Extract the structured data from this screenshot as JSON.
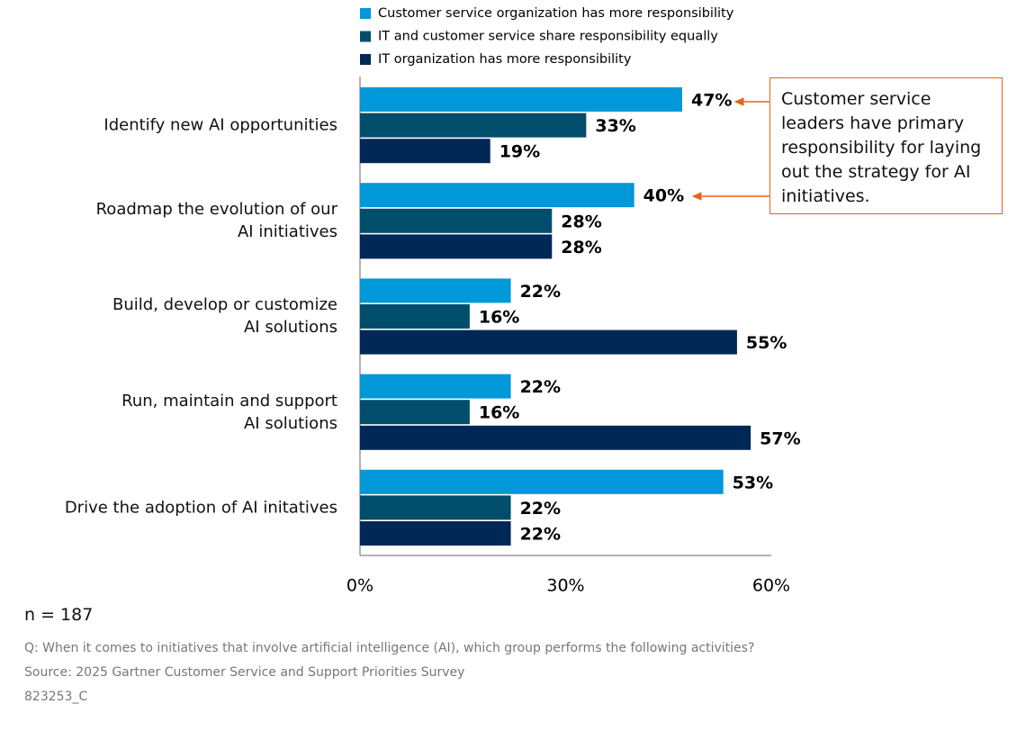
{
  "chart_data": {
    "type": "hbar",
    "categories": [
      "Identify new AI opportunities",
      "Roadmap the evolution of our\nAI initiatives",
      "Build, develop or customize\nAI solutions",
      "Run, maintain and support\nAI solutions",
      "Drive the adoption of AI initatives"
    ],
    "series": [
      {
        "name": "Customer service organization has more responsibility",
        "color": "#0098d8",
        "values": [
          47,
          40,
          22,
          22,
          53
        ],
        "value_labels": [
          "47%",
          "40%",
          "22%",
          "22%",
          "53%"
        ]
      },
      {
        "name": "IT and customer service share responsibility equally",
        "color": "#004e6c",
        "values": [
          33,
          28,
          16,
          16,
          22
        ],
        "value_labels": [
          "33%",
          "28%",
          "16%",
          "16%",
          "22%"
        ]
      },
      {
        "name": "IT organization has more responsibility",
        "color": "#002856",
        "values": [
          19,
          28,
          55,
          57,
          22
        ],
        "value_labels": [
          "19%",
          "28%",
          "55%",
          "57%",
          "22%"
        ]
      }
    ],
    "xlim": [
      0,
      60
    ],
    "xticks": [
      {
        "value": 0,
        "label": "0%"
      },
      {
        "value": 30,
        "label": "30%"
      },
      {
        "value": 60,
        "label": "60%"
      }
    ],
    "grid": false,
    "annotation": "Customer service leaders have primary responsibility for laying out the strategy for AI initiatives.",
    "sample_size": "n = 187",
    "question": "Q: When it comes to initiatives that involve artificial intelligence (AI), which group performs the following activities?",
    "source": "Source: 2025 Gartner Customer Service and Support Priorities Survey",
    "id": "823253_C"
  }
}
